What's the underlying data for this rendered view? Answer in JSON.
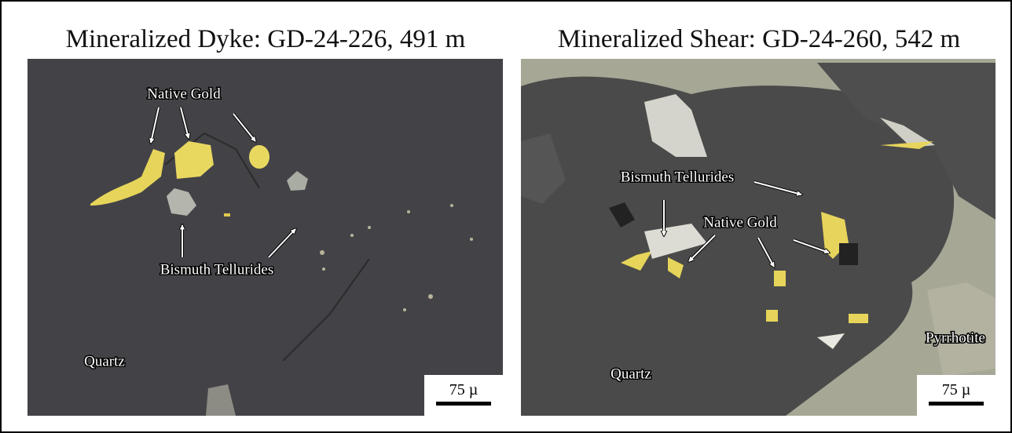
{
  "panels": [
    {
      "title": "Mineralized Dyke: GD-24-226, 491 m",
      "labels": [
        "Native Gold",
        "Bismuth Tellurides",
        "Quartz"
      ],
      "scale_bar": "75 µ"
    },
    {
      "title": "Mineralized Shear: GD-24-260, 542 m",
      "labels": [
        "Bismuth Tellurides",
        "Native Gold",
        "Quartz",
        "Pyrrhotite"
      ],
      "scale_bar": "75 µ"
    }
  ]
}
